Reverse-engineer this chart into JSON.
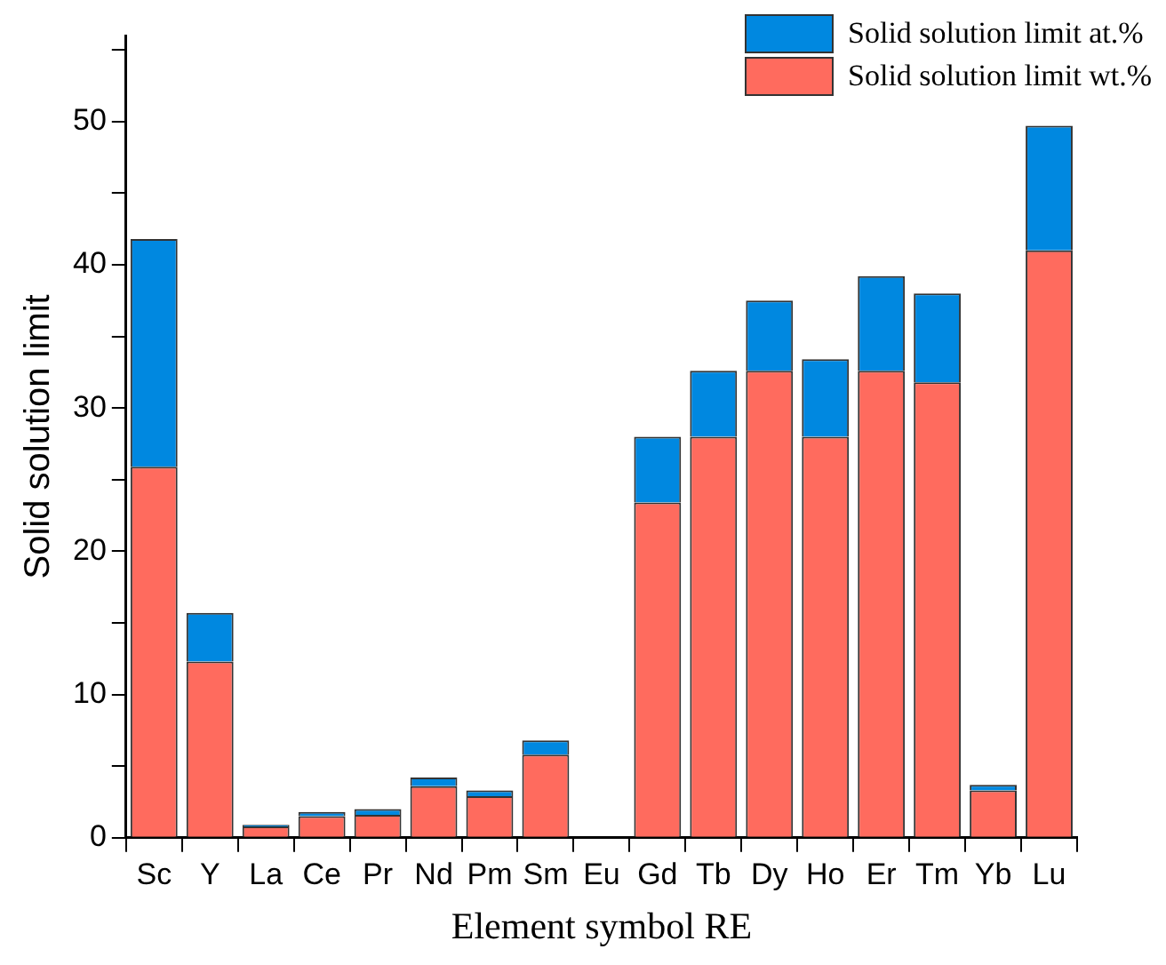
{
  "chart_data": {
    "type": "bar",
    "xlabel": "Element symbol RE",
    "ylabel": "Solid solution limit",
    "categories": [
      "Sc",
      "Y",
      "La",
      "Ce",
      "Pr",
      "Nd",
      "Pm",
      "Sm",
      "Eu",
      "Gd",
      "Tb",
      "Dy",
      "Ho",
      "Er",
      "Tm",
      "Yb",
      "Lu"
    ],
    "series": [
      {
        "name": "Solid solution limit wt.%",
        "color": "#ff6b5e",
        "values": [
          25.9,
          12.3,
          0.8,
          1.5,
          1.6,
          3.6,
          2.9,
          5.8,
          null,
          23.4,
          28.0,
          32.6,
          28.0,
          32.6,
          31.8,
          3.3,
          41.0
        ]
      },
      {
        "name": "Solid solution limit at.%",
        "color": "#0088e0",
        "values": [
          15.9,
          3.4,
          0.1,
          0.3,
          0.4,
          0.6,
          0.4,
          1.0,
          null,
          4.6,
          4.6,
          4.9,
          5.4,
          6.6,
          6.2,
          0.4,
          8.7
        ]
      }
    ],
    "stacked": true,
    "ylim": [
      0,
      56
    ],
    "yticks": [
      0,
      {
        "value": 5,
        "label": null
      },
      10,
      {
        "value": 15,
        "label": null
      },
      20,
      {
        "value": 25,
        "label": null
      },
      30,
      {
        "value": 35,
        "label": null
      },
      40,
      {
        "value": 45,
        "label": null
      },
      50,
      {
        "value": 55,
        "label": null
      }
    ],
    "grid": false,
    "legend": "top right"
  }
}
